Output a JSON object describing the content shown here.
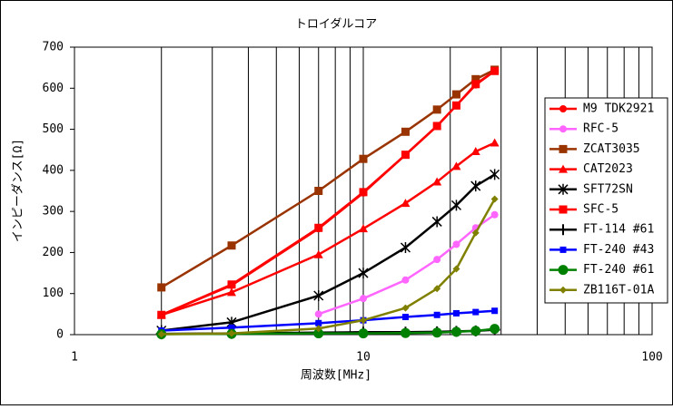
{
  "chart_data": {
    "type": "line",
    "title": "トロイダルコア",
    "x_label": "周波数[MHz]",
    "y_label": "インピーダンス[Ω]",
    "x": [
      2,
      3.5,
      7,
      10,
      14,
      18,
      21,
      24.5,
      28.5
    ],
    "xlim": [
      1,
      100
    ],
    "xticks": [
      1,
      10,
      100
    ],
    "log_x": true,
    "ylim": [
      0,
      700
    ],
    "yticks": [
      0,
      100,
      200,
      300,
      400,
      500,
      600,
      700
    ],
    "grid": true,
    "legend": "right",
    "series": [
      {
        "name": "M9 TDK2921",
        "color": "#ff0000",
        "marker": "circle",
        "values": [
          48,
          120,
          258,
          345,
          438,
          508,
          558,
          608,
          642
        ]
      },
      {
        "name": "RFC-5",
        "color": "#ff66ff",
        "marker": "circle",
        "values": [
          5,
          null,
          50,
          88,
          133,
          183,
          220,
          260,
          292
        ]
      },
      {
        "name": "ZCAT3035",
        "color": "#993300",
        "marker": "square",
        "values": [
          115,
          217,
          350,
          428,
          494,
          548,
          585,
          622,
          645
        ]
      },
      {
        "name": "CAT2023",
        "color": "#ff0000",
        "marker": "triangle",
        "values": [
          48,
          103,
          195,
          258,
          320,
          372,
          410,
          446,
          467
        ]
      },
      {
        "name": "SFT72SN",
        "color": "#000000",
        "marker": "star",
        "values": [
          10,
          30,
          95,
          150,
          212,
          275,
          315,
          362,
          390
        ]
      },
      {
        "name": "SFC-5",
        "color": "#ff0000",
        "marker": "square",
        "values": [
          48,
          122,
          260,
          347,
          438,
          508,
          558,
          610,
          642
        ]
      },
      {
        "name": "FT-114 #61",
        "color": "#000000",
        "marker": "plus",
        "values": [
          2,
          3,
          5,
          6,
          6,
          7,
          8,
          9,
          12
        ]
      },
      {
        "name": "FT-240 #43",
        "color": "#0000ff",
        "marker": "smallsquare",
        "values": [
          10,
          17,
          28,
          35,
          43,
          48,
          52,
          55,
          58
        ]
      },
      {
        "name": "FT-240 #61",
        "color": "#008000",
        "marker": "bigcircle",
        "values": [
          1,
          2,
          3,
          3,
          4,
          5,
          7,
          9,
          14
        ]
      },
      {
        "name": "ZB116T-01A",
        "color": "#808000",
        "marker": "diamond",
        "values": [
          1,
          3,
          15,
          35,
          65,
          112,
          160,
          248,
          330
        ]
      }
    ]
  }
}
